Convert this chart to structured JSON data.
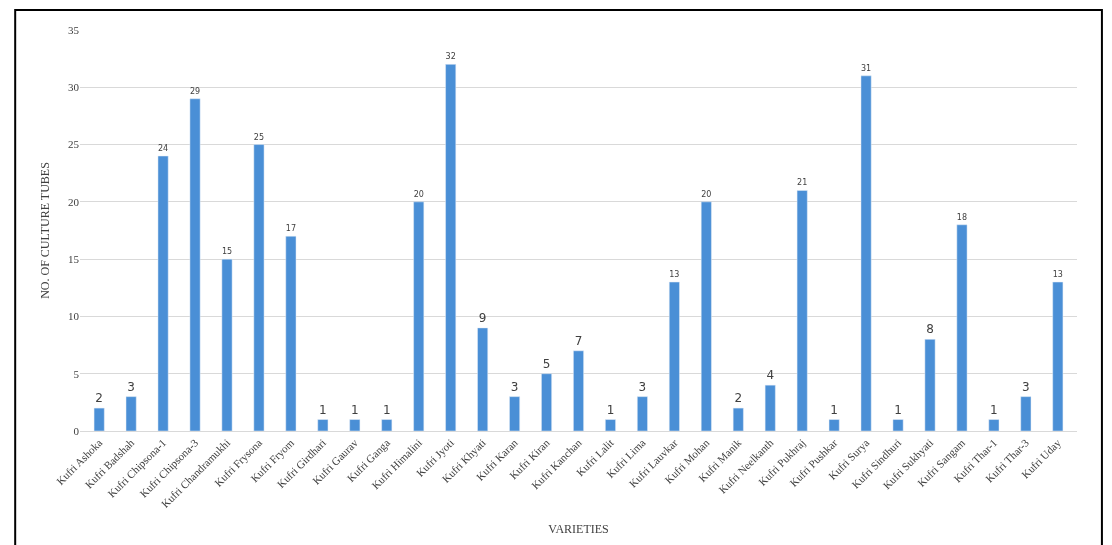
{
  "chart_data": {
    "type": "bar",
    "xlabel": "VARIETIES",
    "ylabel": "NO. OF CULTURE TUBES",
    "categories": [
      "Kufri Ashoka",
      "Kufri Badshah",
      "Kufri Chipsona-1",
      "Kufri Chipsona-3",
      "Kufri Chandramukhi",
      "Kufri Frysona",
      "Kufri Fryom",
      "Kufri Girdhari",
      "Kufri Gaurav",
      "Kufri Ganga",
      "Kufri Himalini",
      "Kufri Jyoti",
      "Kufri Khyati",
      "Kufri Karan",
      "Kufri Kiran",
      "Kufri Kanchan",
      "Kufri Lalit",
      "Kufri Lima",
      "Kufri Lauvkar",
      "Kufri Mohan",
      "Kufri Manik",
      "Kufri Neelkanth",
      "Kufri Pukhraj",
      "Kufri Pushkar",
      "Kufri Surya",
      "Kufri Sindhuri",
      "Kufri Sukhyati",
      "Kufri Sangam",
      "Kufri Thar-1",
      "Kufri Thar-3",
      "Kufri Uday"
    ],
    "values": [
      2,
      3,
      24,
      29,
      15,
      25,
      17,
      1,
      1,
      1,
      20,
      32,
      9,
      3,
      5,
      7,
      1,
      3,
      13,
      20,
      2,
      4,
      21,
      1,
      31,
      1,
      8,
      18,
      1,
      3,
      13
    ],
    "color": "#4a8fd6",
    "ylim": [
      0,
      35
    ],
    "yticks": [
      0,
      5,
      10,
      15,
      20,
      25,
      30,
      35
    ],
    "grid": "y",
    "data_labels": true
  }
}
